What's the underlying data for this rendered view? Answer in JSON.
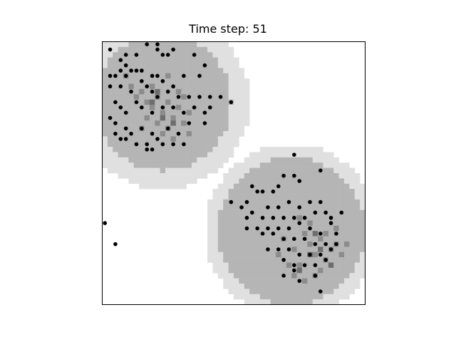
{
  "chart_data": {
    "type": "heatmap",
    "title": "Time step: 51",
    "xlabel": "",
    "ylabel": "",
    "grid_size": [
      50,
      50
    ],
    "axes_ticks": false,
    "colors": {
      "background": "#ffffff",
      "level_1": "#e0e0e0",
      "level_2": "#b5b5b5",
      "level_3": "#8c8c8c",
      "level_4": "#6e6e6e",
      "agent": "#000000"
    },
    "regions": [
      {
        "name": "",
        "center": [
          11.5,
          11.5
        ],
        "radii": {
          "level_1": 16.5,
          "level_2": 13.0
        }
      },
      {
        "name": "",
        "center": [
          36.0,
          36.0
        ],
        "radii": {
          "level_1": 16.5,
          "level_2": 14.0
        }
      }
    ],
    "dense_cells": [
      [
        4,
        6
      ],
      [
        5,
        8
      ],
      [
        6,
        10
      ],
      [
        7,
        9
      ],
      [
        8,
        11
      ],
      [
        9,
        12
      ],
      [
        10,
        10
      ],
      [
        11,
        13
      ],
      [
        12,
        11
      ],
      [
        13,
        14
      ],
      [
        14,
        12
      ],
      [
        15,
        15
      ],
      [
        16,
        13
      ],
      [
        12,
        6
      ],
      [
        14,
        9
      ],
      [
        10,
        15
      ],
      [
        8,
        14
      ],
      [
        11,
        17
      ],
      [
        13,
        18
      ],
      [
        7,
        16
      ],
      [
        15,
        10
      ],
      [
        9,
        8
      ],
      [
        12,
        16
      ],
      [
        16,
        17
      ],
      [
        38,
        36
      ],
      [
        39,
        38
      ],
      [
        40,
        40
      ],
      [
        41,
        37
      ],
      [
        42,
        41
      ],
      [
        43,
        39
      ],
      [
        36,
        39
      ],
      [
        35,
        42
      ],
      [
        37,
        42
      ],
      [
        40,
        44
      ],
      [
        34,
        37
      ],
      [
        39,
        34
      ],
      [
        42,
        36
      ],
      [
        44,
        38
      ],
      [
        45,
        40
      ],
      [
        38,
        45
      ],
      [
        41,
        43
      ],
      [
        36,
        44
      ],
      [
        33,
        40
      ],
      [
        37,
        33
      ],
      [
        44,
        35
      ],
      [
        46,
        38
      ]
    ],
    "darker_cells": [
      [
        9,
        11
      ],
      [
        11,
        14
      ],
      [
        13,
        15
      ],
      [
        10,
        9
      ],
      [
        39,
        40
      ],
      [
        41,
        39
      ],
      [
        37,
        43
      ],
      [
        43,
        42
      ],
      [
        40,
        36
      ]
    ],
    "agents": [
      [
        1,
        1
      ],
      [
        4,
        2
      ],
      [
        6,
        2
      ],
      [
        8,
        0
      ],
      [
        10,
        0
      ],
      [
        13,
        1
      ],
      [
        12,
        2
      ],
      [
        17,
        2
      ],
      [
        10,
        1
      ],
      [
        11,
        2
      ],
      [
        3,
        3
      ],
      [
        4,
        4
      ],
      [
        5,
        5
      ],
      [
        3,
        5
      ],
      [
        4,
        6
      ],
      [
        2,
        6
      ],
      [
        1,
        6
      ],
      [
        6,
        5
      ],
      [
        7,
        5
      ],
      [
        9,
        6
      ],
      [
        10,
        6
      ],
      [
        11,
        7
      ],
      [
        13,
        8
      ],
      [
        15,
        6
      ],
      [
        18,
        6
      ],
      [
        19,
        4
      ],
      [
        1,
        8
      ],
      [
        3,
        8
      ],
      [
        5,
        9
      ],
      [
        7,
        7
      ],
      [
        8,
        8
      ],
      [
        9,
        9
      ],
      [
        10,
        10
      ],
      [
        12,
        9
      ],
      [
        14,
        10
      ],
      [
        16,
        10
      ],
      [
        18,
        10
      ],
      [
        20,
        10
      ],
      [
        22,
        10
      ],
      [
        2,
        11
      ],
      [
        3,
        12
      ],
      [
        4,
        13
      ],
      [
        6,
        11
      ],
      [
        7,
        12
      ],
      [
        9,
        13
      ],
      [
        11,
        12
      ],
      [
        13,
        12
      ],
      [
        15,
        13
      ],
      [
        17,
        12
      ],
      [
        19,
        13
      ],
      [
        20,
        12
      ],
      [
        24,
        11
      ],
      [
        1,
        14
      ],
      [
        2,
        15
      ],
      [
        4,
        16
      ],
      [
        5,
        17
      ],
      [
        7,
        16
      ],
      [
        9,
        17
      ],
      [
        12,
        16
      ],
      [
        14,
        17
      ],
      [
        16,
        15
      ],
      [
        19,
        15
      ],
      [
        2,
        17
      ],
      [
        4,
        18
      ],
      [
        6,
        19
      ],
      [
        8,
        19
      ],
      [
        10,
        18
      ],
      [
        11,
        19
      ],
      [
        13,
        19
      ],
      [
        15,
        19
      ],
      [
        8,
        20
      ],
      [
        9,
        20
      ],
      [
        3,
        18
      ],
      [
        36,
        21
      ],
      [
        41,
        24
      ],
      [
        36,
        25
      ],
      [
        37,
        26
      ],
      [
        34,
        25
      ],
      [
        33,
        27
      ],
      [
        32,
        28
      ],
      [
        28,
        27
      ],
      [
        29,
        28
      ],
      [
        30,
        28
      ],
      [
        24,
        30
      ],
      [
        27,
        30
      ],
      [
        26,
        31
      ],
      [
        28,
        32
      ],
      [
        31,
        31
      ],
      [
        33,
        31
      ],
      [
        35,
        30
      ],
      [
        37,
        31
      ],
      [
        39,
        30
      ],
      [
        41,
        30
      ],
      [
        45,
        32
      ],
      [
        27,
        33
      ],
      [
        30,
        33
      ],
      [
        32,
        33
      ],
      [
        34,
        33
      ],
      [
        36,
        33
      ],
      [
        38,
        33
      ],
      [
        40,
        32
      ],
      [
        42,
        32
      ],
      [
        43,
        33
      ],
      [
        27,
        35
      ],
      [
        29,
        35
      ],
      [
        31,
        35
      ],
      [
        33,
        35
      ],
      [
        35,
        35
      ],
      [
        37,
        34
      ],
      [
        39,
        35
      ],
      [
        41,
        36
      ],
      [
        43,
        34
      ],
      [
        44,
        36
      ],
      [
        30,
        36
      ],
      [
        32,
        36
      ],
      [
        34,
        37
      ],
      [
        36,
        37
      ],
      [
        38,
        37
      ],
      [
        40,
        38
      ],
      [
        42,
        38
      ],
      [
        44,
        38
      ],
      [
        31,
        39
      ],
      [
        33,
        39
      ],
      [
        35,
        39
      ],
      [
        37,
        40
      ],
      [
        39,
        40
      ],
      [
        41,
        40
      ],
      [
        43,
        39
      ],
      [
        34,
        41
      ],
      [
        36,
        42
      ],
      [
        38,
        42
      ],
      [
        40,
        42
      ],
      [
        42,
        41
      ],
      [
        34,
        44
      ],
      [
        36,
        43
      ],
      [
        37,
        45
      ],
      [
        40,
        44
      ],
      [
        41,
        47
      ],
      [
        0,
        34
      ],
      [
        2,
        38
      ]
    ]
  }
}
